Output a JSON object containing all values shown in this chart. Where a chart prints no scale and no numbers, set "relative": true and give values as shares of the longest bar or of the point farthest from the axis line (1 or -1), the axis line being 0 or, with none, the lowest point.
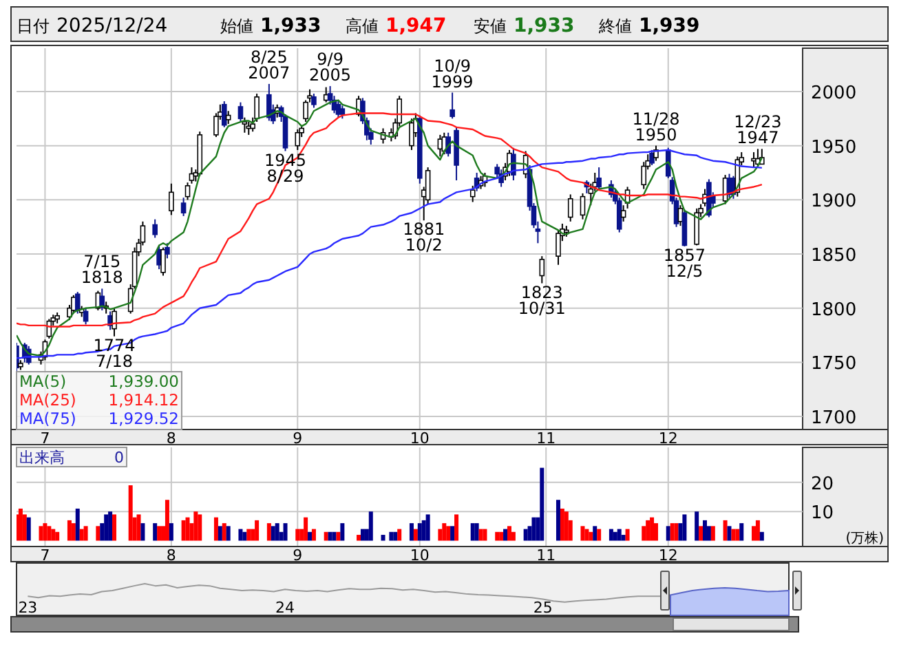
{
  "chart_data": [
    {
      "type": "other",
      "annotations": [
        "日付",
        "2025/12/24",
        "始値",
        "1,933",
        "高値",
        "1,947",
        "安値",
        "1,933",
        "終値",
        "1,939"
      ]
    },
    {
      "type": "candlestick",
      "x": [
        "2025-06-24",
        "2025-06-25",
        "2025-06-26",
        "2025-06-27",
        "2025-06-30",
        "2025-07-01",
        "2025-07-02",
        "2025-07-03",
        "2025-07-04",
        "2025-07-07",
        "2025-07-08",
        "2025-07-09",
        "2025-07-10",
        "2025-07-11",
        "2025-07-14",
        "2025-07-15",
        "2025-07-16",
        "2025-07-17",
        "2025-07-18",
        "2025-07-22",
        "2025-07-23",
        "2025-07-24",
        "2025-07-25",
        "2025-07-28",
        "2025-07-29",
        "2025-07-30",
        "2025-07-31",
        "2025-08-01",
        "2025-08-04",
        "2025-08-05",
        "2025-08-06",
        "2025-08-07",
        "2025-08-08",
        "2025-08-12",
        "2025-08-13",
        "2025-08-14",
        "2025-08-15",
        "2025-08-18",
        "2025-08-19",
        "2025-08-20",
        "2025-08-21",
        "2025-08-22",
        "2025-08-25",
        "2025-08-26",
        "2025-08-27",
        "2025-08-28",
        "2025-08-29",
        "2025-09-01",
        "2025-09-02",
        "2025-09-03",
        "2025-09-04",
        "2025-09-05",
        "2025-09-08",
        "2025-09-09",
        "2025-09-10",
        "2025-09-11",
        "2025-09-12",
        "2025-09-16",
        "2025-09-17",
        "2025-09-18",
        "2025-09-19",
        "2025-09-22",
        "2025-09-24",
        "2025-09-25",
        "2025-09-26",
        "2025-09-29",
        "2025-09-30",
        "2025-10-01",
        "2025-10-02",
        "2025-10-03",
        "2025-10-06",
        "2025-10-07",
        "2025-10-08",
        "2025-10-09",
        "2025-10-10",
        "2025-10-14",
        "2025-10-15",
        "2025-10-16",
        "2025-10-17",
        "2025-10-20",
        "2025-10-21",
        "2025-10-22",
        "2025-10-23",
        "2025-10-24",
        "2025-10-27",
        "2025-10-28",
        "2025-10-29",
        "2025-10-30",
        "2025-10-31",
        "2025-11-04",
        "2025-11-05",
        "2025-11-06",
        "2025-11-07",
        "2025-11-10",
        "2025-11-11",
        "2025-11-12",
        "2025-11-13",
        "2025-11-14",
        "2025-11-17",
        "2025-11-18",
        "2025-11-19",
        "2025-11-20",
        "2025-11-21",
        "2025-11-25",
        "2025-11-26",
        "2025-11-27",
        "2025-11-28",
        "2025-12-01",
        "2025-12-02",
        "2025-12-03",
        "2025-12-04",
        "2025-12-05",
        "2025-12-08",
        "2025-12-09",
        "2025-12-10",
        "2025-12-11",
        "2025-12-12",
        "2025-12-15",
        "2025-12-16",
        "2025-12-17",
        "2025-12-18",
        "2025-12-19",
        "2025-12-22",
        "2025-12-23",
        "2025-12-24"
      ],
      "xlim": [
        "2025-06-24",
        "2026-01-03"
      ],
      "xticks": [
        {
          "value": "2025-07-01",
          "label": "7"
        },
        {
          "value": "2025-08-01",
          "label": "8"
        },
        {
          "value": "2025-09-01",
          "label": "9"
        },
        {
          "value": "2025-10-01",
          "label": "10"
        },
        {
          "value": "2025-11-01",
          "label": "11"
        },
        {
          "value": "2025-12-01",
          "label": "12"
        }
      ],
      "ohlc": [
        [
          1765,
          1768,
          1742,
          1745
        ],
        [
          1746,
          1752,
          1743,
          1749
        ],
        [
          1766,
          1768,
          1750,
          1754
        ],
        [
          1762,
          1765,
          1748,
          1750
        ],
        [
          1752,
          1760,
          1748,
          1757
        ],
        [
          1755,
          1771,
          1752,
          1769
        ],
        [
          1774,
          1790,
          1772,
          1788
        ],
        [
          1788,
          1794,
          1784,
          1791
        ],
        [
          1790,
          1796,
          1786,
          1793
        ],
        [
          1792,
          1803,
          1789,
          1800
        ],
        [
          1798,
          1812,
          1795,
          1810
        ],
        [
          1813,
          1815,
          1795,
          1798
        ],
        [
          1796,
          1802,
          1792,
          1799
        ],
        [
          1797,
          1800,
          1785,
          1788
        ],
        [
          1800,
          1816,
          1798,
          1814
        ],
        [
          1811,
          1818,
          1798,
          1801
        ],
        [
          1800,
          1806,
          1795,
          1802
        ],
        [
          1793,
          1797,
          1780,
          1784
        ],
        [
          1781,
          1800,
          1774,
          1797
        ],
        [
          1797,
          1822,
          1795,
          1818
        ],
        [
          1820,
          1856,
          1818,
          1852
        ],
        [
          1852,
          1864,
          1848,
          1860
        ],
        [
          1861,
          1880,
          1858,
          1876
        ],
        [
          1877,
          1882,
          1865,
          1868
        ],
        [
          1854,
          1858,
          1836,
          1840
        ],
        [
          1833,
          1856,
          1830,
          1854
        ],
        [
          1856,
          1860,
          1846,
          1850
        ],
        [
          1890,
          1915,
          1886,
          1907
        ],
        [
          1897,
          1902,
          1885,
          1888
        ],
        [
          1903,
          1916,
          1900,
          1913
        ],
        [
          1918,
          1930,
          1915,
          1924
        ],
        [
          1922,
          1928,
          1917,
          1925
        ],
        [
          1924,
          1963,
          1922,
          1960
        ],
        [
          1960,
          1980,
          1958,
          1977
        ],
        [
          1977,
          1988,
          1974,
          1981
        ],
        [
          1988,
          1991,
          1967,
          1969
        ],
        [
          1974,
          1982,
          1970,
          1978
        ],
        [
          1986,
          1990,
          1972,
          1975
        ],
        [
          1970,
          1976,
          1962,
          1972
        ],
        [
          1966,
          1972,
          1960,
          1968
        ],
        [
          1966,
          1976,
          1963,
          1970
        ],
        [
          1975,
          1998,
          1972,
          1995
        ],
        [
          1997,
          2007,
          1973,
          1976
        ],
        [
          1983,
          1988,
          1970,
          1973
        ],
        [
          1980,
          1988,
          1976,
          1985
        ],
        [
          1985,
          1987,
          1972,
          1977
        ],
        [
          1977,
          1979,
          1945,
          1948
        ],
        [
          1950,
          1965,
          1946,
          1962
        ],
        [
          1962,
          1969,
          1958,
          1966
        ],
        [
          1975,
          1992,
          1972,
          1990
        ],
        [
          1994,
          2002,
          1990,
          1996
        ],
        [
          1995,
          1998,
          1985,
          1988
        ],
        [
          1992,
          2004,
          1990,
          1997
        ],
        [
          1998,
          2005,
          1988,
          1992
        ],
        [
          1992,
          1996,
          1980,
          1983
        ],
        [
          1988,
          1991,
          1976,
          1979
        ],
        [
          1984,
          1987,
          1975,
          1979
        ],
        [
          1979,
          1996,
          1977,
          1993
        ],
        [
          1991,
          1994,
          1970,
          1973
        ],
        [
          1973,
          1976,
          1955,
          1960
        ],
        [
          1962,
          1966,
          1951,
          1956
        ],
        [
          1956,
          1966,
          1952,
          1962
        ],
        [
          1958,
          1966,
          1954,
          1962
        ],
        [
          1959,
          1975,
          1956,
          1971
        ],
        [
          1971,
          1996,
          1968,
          1993
        ],
        [
          1950,
          1975,
          1946,
          1971
        ],
        [
          1962,
          1980,
          1958,
          1975
        ],
        [
          1975,
          1978,
          1915,
          1920
        ],
        [
          1903,
          1912,
          1881,
          1909
        ],
        [
          1900,
          1930,
          1896,
          1927
        ],
        [
          1947,
          1960,
          1940,
          1956
        ],
        [
          1945,
          1962,
          1942,
          1958
        ],
        [
          1958,
          1962,
          1940,
          1943
        ],
        [
          1983,
          1999,
          1975,
          1977
        ],
        [
          1964,
          1967,
          1918,
          1932
        ],
        [
          1903,
          1913,
          1898,
          1909
        ],
        [
          1920,
          1925,
          1908,
          1911
        ],
        [
          1913,
          1922,
          1910,
          1918
        ],
        [
          1916,
          1925,
          1912,
          1922
        ],
        [
          1930,
          1933,
          1920,
          1924
        ],
        [
          1924,
          1928,
          1912,
          1916
        ],
        [
          1922,
          1934,
          1918,
          1930
        ],
        [
          1926,
          1946,
          1922,
          1943
        ],
        [
          1942,
          1948,
          1918,
          1923
        ],
        [
          1924,
          1945,
          1920,
          1941
        ],
        [
          1928,
          1932,
          1890,
          1894
        ],
        [
          1894,
          1897,
          1874,
          1877
        ],
        [
          1873,
          1880,
          1860,
          1871
        ],
        [
          1830,
          1848,
          1823,
          1845
        ],
        [
          1848,
          1872,
          1840,
          1869
        ],
        [
          1867,
          1878,
          1862,
          1873
        ],
        [
          1870,
          1876,
          1866,
          1872
        ],
        [
          1884,
          1905,
          1880,
          1901
        ],
        [
          1886,
          1906,
          1882,
          1903
        ],
        [
          1916,
          1918,
          1906,
          1912
        ],
        [
          1906,
          1915,
          1895,
          1910
        ],
        [
          1912,
          1925,
          1908,
          1916
        ],
        [
          1920,
          1930,
          1910,
          1912
        ],
        [
          1914,
          1918,
          1902,
          1905
        ],
        [
          1907,
          1910,
          1896,
          1899
        ],
        [
          1899,
          1902,
          1870,
          1873
        ],
        [
          1884,
          1895,
          1880,
          1890
        ],
        [
          1897,
          1912,
          1892,
          1909
        ],
        [
          1914,
          1935,
          1910,
          1931
        ],
        [
          1931,
          1942,
          1928,
          1936
        ],
        [
          1943,
          1946,
          1932,
          1934
        ],
        [
          1939,
          1950,
          1936,
          1946
        ],
        [
          1946,
          1948,
          1920,
          1922
        ],
        [
          1918,
          1921,
          1896,
          1899
        ],
        [
          1899,
          1902,
          1875,
          1878
        ],
        [
          1880,
          1895,
          1876,
          1892
        ],
        [
          1888,
          1891,
          1857,
          1858
        ],
        [
          1859,
          1892,
          1858,
          1888
        ],
        [
          1888,
          1896,
          1884,
          1892
        ],
        [
          1897,
          1910,
          1894,
          1905
        ],
        [
          1916,
          1919,
          1884,
          1886
        ],
        [
          1903,
          1907,
          1893,
          1897
        ],
        [
          1899,
          1923,
          1896,
          1920
        ],
        [
          1920,
          1924,
          1902,
          1905
        ],
        [
          1920,
          1922,
          1901,
          1905
        ],
        [
          1907,
          1940,
          1903,
          1937
        ],
        [
          1935,
          1944,
          1932,
          1939
        ],
        [
          1936,
          1944,
          1930,
          1938
        ],
        [
          1933,
          1947,
          1930,
          1938
        ],
        [
          1933,
          1947,
          1933,
          1939
        ]
      ],
      "series": [
        {
          "name": "MA(5)",
          "type": "line",
          "color": "#1e7b1e",
          "values": [
            1775,
            1768,
            1762,
            1758,
            1756,
            1760,
            1766,
            1775,
            1782,
            1790,
            1796,
            1798,
            1799,
            1800,
            1801,
            1802,
            1801,
            1799,
            1800,
            1805,
            1815,
            1826,
            1840,
            1850,
            1858,
            1860,
            1858,
            1862,
            1870,
            1880,
            1895,
            1910,
            1924,
            1940,
            1952,
            1962,
            1968,
            1972,
            1973,
            1973,
            1971,
            1975,
            1978,
            1980,
            1982,
            1981,
            1978,
            1972,
            1968,
            1970,
            1975,
            1982,
            1988,
            1990,
            1991,
            1992,
            1988,
            1983,
            1978,
            1970,
            1964,
            1960,
            1958,
            1960,
            1967,
            1973,
            1975,
            1968,
            1962,
            1950,
            1937,
            1945,
            1950,
            1954,
            1950,
            1941,
            1932,
            1925,
            1922,
            1920,
            1922,
            1926,
            1933,
            1934,
            1933,
            1928,
            1915,
            1895,
            1880,
            1872,
            1869,
            1868,
            1870,
            1873,
            1885,
            1897,
            1907,
            1910,
            1912,
            1910,
            1905,
            1900,
            1897,
            1905,
            1913,
            1920,
            1928,
            1935,
            1928,
            1912,
            1900,
            1890,
            1884,
            1882,
            1886,
            1890,
            1893,
            1897,
            1901,
            1905,
            1912,
            1920,
            1926,
            1931,
            1939.0
          ]
        },
        {
          "name": "MA(25)",
          "type": "line",
          "color": "#ff1a1a",
          "values": [
            1786,
            1785,
            1785,
            1784,
            1784,
            1784,
            1783,
            1783,
            1783,
            1783,
            1784,
            1784,
            1784,
            1784,
            1784,
            1784,
            1785,
            1785,
            1786,
            1787,
            1789,
            1790,
            1792,
            1795,
            1798,
            1801,
            1803,
            1805,
            1811,
            1817,
            1824,
            1830,
            1837,
            1843,
            1850,
            1857,
            1864,
            1871,
            1877,
            1883,
            1890,
            1896,
            1901,
            1907,
            1915,
            1923,
            1932,
            1939,
            1945,
            1951,
            1958,
            1962,
            1966,
            1970,
            1973,
            1976,
            1978,
            1980,
            1980,
            1980,
            1980,
            1980,
            1979,
            1979,
            1979,
            1979,
            1979,
            1977,
            1975,
            1973,
            1972,
            1971,
            1970,
            1969,
            1967,
            1965,
            1963,
            1961,
            1959,
            1957,
            1956,
            1953,
            1950,
            1947,
            1943,
            1940,
            1936,
            1933,
            1930,
            1926,
            1923,
            1920,
            1918,
            1916,
            1914,
            1912,
            1911,
            1909,
            1907,
            1906,
            1905,
            1905,
            1904,
            1904,
            1905,
            1905,
            1905,
            1905,
            1904,
            1904,
            1903,
            1903,
            1902,
            1901,
            1902,
            1903,
            1904,
            1905,
            1906,
            1907,
            1909,
            1910,
            1912,
            1913,
            1914.12
          ]
        },
        {
          "name": "MA(75)",
          "type": "line",
          "color": "#2a2aff",
          "values": [
            1754,
            1754,
            1755,
            1755,
            1755,
            1756,
            1756,
            1756,
            1757,
            1757,
            1757,
            1758,
            1758,
            1759,
            1760,
            1761,
            1762,
            1762,
            1765,
            1768,
            1771,
            1773,
            1774,
            1776,
            1777,
            1778,
            1779,
            1782,
            1786,
            1790,
            1794,
            1797,
            1800,
            1803,
            1806,
            1809,
            1812,
            1814,
            1817,
            1819,
            1822,
            1824,
            1826,
            1828,
            1830,
            1832,
            1834,
            1838,
            1842,
            1846,
            1850,
            1852,
            1855,
            1857,
            1860,
            1862,
            1864,
            1867,
            1869,
            1872,
            1875,
            1877,
            1880,
            1882,
            1885,
            1888,
            1890,
            1892,
            1894,
            1896,
            1898,
            1901,
            1903,
            1905,
            1907,
            1910,
            1912,
            1915,
            1917,
            1920,
            1922,
            1924,
            1925,
            1927,
            1928,
            1930,
            1931,
            1932,
            1933,
            1934,
            1934,
            1935,
            1935,
            1936,
            1937,
            1938,
            1938,
            1939,
            1940,
            1941,
            1942,
            1942,
            1943,
            1944,
            1944,
            1945,
            1945,
            1946,
            1945,
            1944,
            1943,
            1942,
            1941,
            1939,
            1938,
            1937,
            1936,
            1935,
            1934,
            1933,
            1932,
            1931,
            1930,
            1930,
            1929.52
          ]
        }
      ],
      "ylim": [
        1688,
        2040
      ],
      "yticks": [
        1700,
        1750,
        1800,
        1850,
        1900,
        1950,
        2000
      ],
      "grid": true,
      "legend": "bottom left",
      "annotations": [
        "1,939.00",
        "1,914.12",
        "1,929.52",
        {
          "text": "7/15\n1818",
          "x": "2025-07-15",
          "y": 1818
        },
        {
          "text": "1774\n7/18",
          "x": "2025-07-18",
          "y": 1774
        },
        {
          "text": "8/25\n2007",
          "x": "2025-08-25",
          "y": 2007
        },
        {
          "text": "1945\n8/29",
          "x": "2025-08-29",
          "y": 1945
        },
        {
          "text": "9/9\n2005",
          "x": "2025-09-09",
          "y": 2005
        },
        {
          "text": "1881\n10/2",
          "x": "2025-10-02",
          "y": 1881
        },
        {
          "text": "10/9\n1999",
          "x": "2025-10-09",
          "y": 1999
        },
        {
          "text": "1823\n10/31",
          "x": "2025-10-31",
          "y": 1823
        },
        {
          "text": "11/28\n1950",
          "x": "2025-11-28",
          "y": 1950
        },
        {
          "text": "1857\n12/5",
          "x": "2025-12-05",
          "y": 1857
        },
        {
          "text": "12/23\n1947",
          "x": "2025-12-23",
          "y": 1947
        }
      ]
    },
    {
      "type": "bar",
      "x": [
        "2025-06-24",
        "2025-06-25",
        "2025-06-26",
        "2025-06-27",
        "2025-06-30",
        "2025-07-01",
        "2025-07-02",
        "2025-07-03",
        "2025-07-04",
        "2025-07-07",
        "2025-07-08",
        "2025-07-09",
        "2025-07-10",
        "2025-07-11",
        "2025-07-14",
        "2025-07-15",
        "2025-07-16",
        "2025-07-17",
        "2025-07-18",
        "2025-07-22",
        "2025-07-23",
        "2025-07-24",
        "2025-07-25",
        "2025-07-28",
        "2025-07-29",
        "2025-07-30",
        "2025-07-31",
        "2025-08-01",
        "2025-08-04",
        "2025-08-05",
        "2025-08-06",
        "2025-08-07",
        "2025-08-08",
        "2025-08-12",
        "2025-08-13",
        "2025-08-14",
        "2025-08-15",
        "2025-08-18",
        "2025-08-19",
        "2025-08-20",
        "2025-08-21",
        "2025-08-22",
        "2025-08-25",
        "2025-08-26",
        "2025-08-27",
        "2025-08-28",
        "2025-08-29",
        "2025-09-01",
        "2025-09-02",
        "2025-09-03",
        "2025-09-04",
        "2025-09-05",
        "2025-09-08",
        "2025-09-09",
        "2025-09-10",
        "2025-09-11",
        "2025-09-12",
        "2025-09-16",
        "2025-09-17",
        "2025-09-18",
        "2025-09-19",
        "2025-09-22",
        "2025-09-24",
        "2025-09-25",
        "2025-09-26",
        "2025-09-29",
        "2025-09-30",
        "2025-10-01",
        "2025-10-02",
        "2025-10-03",
        "2025-10-06",
        "2025-10-07",
        "2025-10-08",
        "2025-10-09",
        "2025-10-10",
        "2025-10-14",
        "2025-10-15",
        "2025-10-16",
        "2025-10-17",
        "2025-10-20",
        "2025-10-21",
        "2025-10-22",
        "2025-10-23",
        "2025-10-24",
        "2025-10-27",
        "2025-10-28",
        "2025-10-29",
        "2025-10-30",
        "2025-10-31",
        "2025-11-04",
        "2025-11-05",
        "2025-11-06",
        "2025-11-07",
        "2025-11-10",
        "2025-11-11",
        "2025-11-12",
        "2025-11-13",
        "2025-11-14",
        "2025-11-17",
        "2025-11-18",
        "2025-11-19",
        "2025-11-20",
        "2025-11-21",
        "2025-11-25",
        "2025-11-26",
        "2025-11-27",
        "2025-11-28",
        "2025-12-01",
        "2025-12-02",
        "2025-12-03",
        "2025-12-04",
        "2025-12-05",
        "2025-12-08",
        "2025-12-09",
        "2025-12-10",
        "2025-12-11",
        "2025-12-12",
        "2025-12-15",
        "2025-12-16",
        "2025-12-17",
        "2025-12-18",
        "2025-12-19",
        "2025-12-22",
        "2025-12-23",
        "2025-12-24"
      ],
      "xlim": [
        "2025-06-24",
        "2026-01-03"
      ],
      "xticks": [
        {
          "value": "2025-07-01",
          "label": "7"
        },
        {
          "value": "2025-08-01",
          "label": "8"
        },
        {
          "value": "2025-09-01",
          "label": "9"
        },
        {
          "value": "2025-10-01",
          "label": "10"
        },
        {
          "value": "2025-11-01",
          "label": "11"
        },
        {
          "value": "2025-12-01",
          "label": "12"
        }
      ],
      "values": [
        9,
        11,
        9,
        8,
        5,
        6,
        5,
        4,
        3,
        7,
        6,
        11,
        4,
        5,
        5,
        6,
        9,
        10,
        9,
        19,
        8,
        9,
        6,
        6,
        5,
        5,
        14,
        6,
        7,
        8,
        6,
        10,
        9,
        8,
        5,
        6,
        5,
        4,
        3,
        4,
        4,
        7,
        6,
        5,
        6,
        3,
        6,
        4,
        4,
        8,
        3,
        4,
        3,
        3,
        3,
        3,
        6,
        2,
        4,
        4,
        10,
        2,
        3,
        3,
        4,
        6,
        4,
        6,
        7,
        9,
        4,
        6,
        5,
        5,
        9,
        6,
        6,
        4,
        4,
        3,
        3,
        4,
        5,
        3,
        4,
        5,
        8,
        8,
        25,
        14,
        11,
        10,
        7,
        5,
        4,
        3,
        5,
        4,
        4,
        3,
        4,
        2,
        4,
        5,
        7,
        8,
        6,
        5,
        6,
        6,
        6,
        9,
        10,
        5,
        7,
        5,
        5,
        7,
        5,
        4,
        4,
        6,
        5,
        7,
        3
      ],
      "colors": [
        "#ff0000",
        "#ff0000",
        "#ff0000",
        "#00008b",
        "#ff0000",
        "#ff0000",
        "#ff0000",
        "#ff0000",
        "#ff0000",
        "#ff0000",
        "#ff0000",
        "#00008b",
        "#ff0000",
        "#ff0000",
        "#ff0000",
        "#00008b",
        "#00008b",
        "#00008b",
        "#ff0000",
        "#ff0000",
        "#ff0000",
        "#ff0000",
        "#00008b",
        "#00008b",
        "#ff0000",
        "#ff0000",
        "#ff0000",
        "#00008b",
        "#ff0000",
        "#ff0000",
        "#ff0000",
        "#ff0000",
        "#ff0000",
        "#ff0000",
        "#00008b",
        "#ff0000",
        "#00008b",
        "#00008b",
        "#00008b",
        "#ff0000",
        "#ff0000",
        "#ff0000",
        "#ff0000",
        "#00008b",
        "#00008b",
        "#00008b",
        "#00008b",
        "#ff0000",
        "#ff0000",
        "#ff0000",
        "#00008b",
        "#ff0000",
        "#ff0000",
        "#00008b",
        "#00008b",
        "#ff0000",
        "#00008b",
        "#ff0000",
        "#00008b",
        "#00008b",
        "#00008b",
        "#00008b",
        "#00008b",
        "#00008b",
        "#ff0000",
        "#00008b",
        "#ff0000",
        "#00008b",
        "#00008b",
        "#00008b",
        "#ff0000",
        "#ff0000",
        "#ff0000",
        "#00008b",
        "#ff0000",
        "#00008b",
        "#00008b",
        "#ff0000",
        "#ff0000",
        "#ff0000",
        "#ff0000",
        "#00008b",
        "#ff0000",
        "#ff0000",
        "#00008b",
        "#00008b",
        "#00008b",
        "#00008b",
        "#00008b",
        "#00008b",
        "#ff0000",
        "#ff0000",
        "#ff0000",
        "#ff0000",
        "#ff0000",
        "#ff0000",
        "#00008b",
        "#ff0000",
        "#00008b",
        "#00008b",
        "#00008b",
        "#00008b",
        "#ff0000",
        "#ff0000",
        "#ff0000",
        "#ff0000",
        "#ff0000",
        "#00008b",
        "#ff0000",
        "#ff0000",
        "#00008b",
        "#00008b",
        "#00008b",
        "#ff0000",
        "#00008b",
        "#00008b",
        "#ff0000",
        "#ff0000",
        "#00008b",
        "#ff0000",
        "#ff0000",
        "#00008b",
        "#ff0000",
        "#ff0000",
        "#00008b"
      ],
      "ylim": [
        -2,
        32
      ],
      "yticks": [
        10,
        20
      ],
      "grid": true,
      "ylabel": "(万株)",
      "annotations": [
        "出来高",
        "0"
      ]
    },
    {
      "type": "line",
      "relative": true,
      "x": [
        "2023-01-01",
        "2023-01-16",
        "2023-02-01",
        "2023-02-16",
        "2023-03-01",
        "2023-03-16",
        "2023-04-01",
        "2023-04-16",
        "2023-05-01",
        "2023-05-16",
        "2023-06-01",
        "2023-06-16",
        "2023-07-01",
        "2023-07-16",
        "2023-08-01",
        "2023-08-16",
        "2023-09-01",
        "2023-09-16",
        "2023-10-01",
        "2023-10-16",
        "2023-11-01",
        "2023-11-16",
        "2023-12-01",
        "2023-12-16",
        "2024-01-01",
        "2024-01-16",
        "2024-02-01",
        "2024-02-16",
        "2024-03-01",
        "2024-03-16",
        "2024-04-01",
        "2024-04-16",
        "2024-05-01",
        "2024-05-16",
        "2024-06-01",
        "2024-06-16",
        "2024-07-01",
        "2024-07-16",
        "2024-08-01",
        "2024-08-16",
        "2024-09-01",
        "2024-09-16",
        "2024-10-01",
        "2024-10-16",
        "2024-11-01",
        "2024-11-16",
        "2024-12-01",
        "2024-12-16",
        "2025-01-01",
        "2025-01-16",
        "2025-02-01",
        "2025-02-16",
        "2025-03-01",
        "2025-03-16",
        "2025-04-01",
        "2025-04-16",
        "2025-05-01",
        "2025-05-16",
        "2025-06-01",
        "2025-06-16",
        "2025-07-01",
        "2025-07-16",
        "2025-08-01",
        "2025-08-16",
        "2025-09-01",
        "2025-09-16",
        "2025-10-01",
        "2025-10-16",
        "2025-11-01",
        "2025-11-16",
        "2025-12-01",
        "2025-12-16"
      ],
      "xlim": [
        "2022-12-16",
        "2025-12-16"
      ],
      "xticks": [
        {
          "value": "2023-01-01",
          "label": "23"
        },
        {
          "value": "2024-01-01",
          "label": "24"
        },
        {
          "value": "2025-01-01",
          "label": "25"
        }
      ],
      "series": [
        {
          "type": "line",
          "color": "#9a9a9a",
          "values": [
            0.6,
            0.56,
            0.62,
            0.6,
            0.64,
            0.67,
            0.65,
            0.75,
            0.78,
            0.85,
            0.93,
            1,
            0.93,
            0.96,
            0.87,
            0.91,
            0.95,
            0.93,
            0.85,
            0.82,
            0.78,
            0.8,
            0.78,
            0.75,
            0.82,
            0.78,
            0.76,
            0.78,
            0.75,
            0.8,
            0.84,
            0.82,
            0.82,
            0.85,
            0.84,
            0.8,
            0.82,
            0.78,
            0.73,
            0.75,
            0.71,
            0.67,
            0.65,
            0.64,
            0.62,
            0.6,
            0.58,
            0.56,
            0.51,
            0.45,
            0.42,
            0.45,
            0.47,
            0.49,
            0.51,
            0.55,
            0.58,
            0.6,
            0.6,
            0.6,
            0.64,
            null,
            null,
            null,
            null,
            null,
            null,
            null,
            null,
            null,
            null,
            null
          ]
        },
        {
          "type": "area",
          "color": "#bac6f8",
          "values": [
            null,
            null,
            null,
            null,
            null,
            null,
            null,
            null,
            null,
            null,
            null,
            null,
            null,
            null,
            null,
            null,
            null,
            null,
            null,
            null,
            null,
            null,
            null,
            null,
            null,
            null,
            null,
            null,
            null,
            null,
            null,
            null,
            null,
            null,
            null,
            null,
            null,
            null,
            null,
            null,
            null,
            null,
            null,
            null,
            null,
            null,
            null,
            null,
            null,
            null,
            null,
            null,
            null,
            null,
            null,
            null,
            null,
            null,
            null,
            null,
            0.64,
            0.71,
            0.78,
            0.82,
            0.85,
            0.87,
            0.85,
            0.82,
            0.78,
            0.75,
            0.76,
            0.78
          ]
        }
      ]
    }
  ]
}
